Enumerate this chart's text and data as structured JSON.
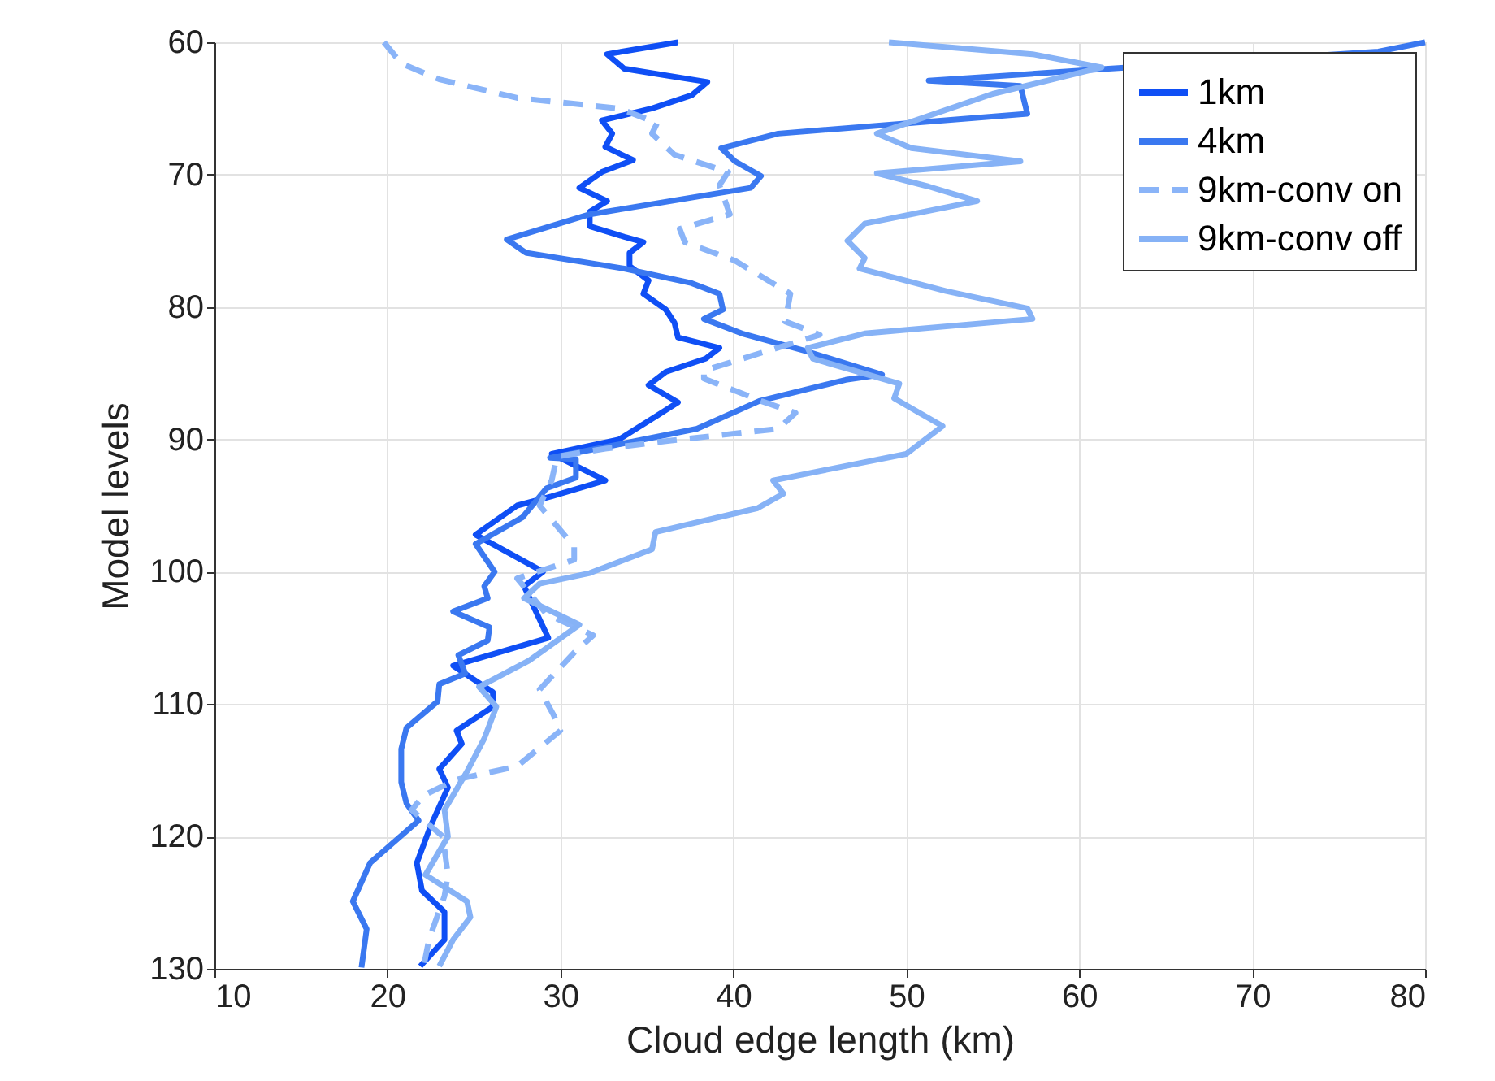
{
  "chart_data": {
    "type": "line",
    "xlabel": "Cloud edge length (km)",
    "ylabel": "Model levels",
    "xlim": [
      10,
      80
    ],
    "xticks": [
      10,
      20,
      30,
      40,
      50,
      60,
      70,
      80
    ],
    "ylim": [
      130,
      60
    ],
    "yticks": [
      60,
      70,
      80,
      90,
      100,
      110,
      120,
      130
    ],
    "grid": true,
    "legend": "top right",
    "marker": "none",
    "series": [
      {
        "name": "1km",
        "color": "#0f4ff5",
        "line_style": "solid",
        "x": [
          36.8,
          32.7,
          33.7,
          36.1,
          38.5,
          37.6,
          35.3,
          32.4,
          33,
          32.6,
          34.2,
          32.4,
          31.1,
          32.7,
          31.7,
          31.7,
          33.7,
          34.8,
          34,
          34,
          35.1,
          34.8,
          36.1,
          36.6,
          36.8,
          39.2,
          38.4,
          36.1,
          35.1,
          36.8,
          35.6,
          33.4,
          29.5,
          32.6,
          29.5,
          27.5,
          25.1,
          29,
          27.9,
          29.3,
          23.8,
          26.1,
          26.1,
          24,
          24.3,
          23,
          23.5,
          22.5,
          21.7,
          22,
          23.3,
          23.3,
          21.9
        ],
        "values": [
          60,
          60.9,
          62,
          62.5,
          63,
          64,
          65,
          65.9,
          66.9,
          67.9,
          68.9,
          69.8,
          71,
          72,
          72.8,
          73.9,
          74.7,
          75.1,
          75.9,
          76.9,
          78,
          79,
          80.2,
          81.2,
          82.3,
          83.1,
          83.9,
          84.9,
          85.9,
          87.2,
          88.2,
          90,
          91.1,
          93.1,
          94.3,
          95,
          97.2,
          100,
          101.1,
          105,
          107.1,
          109.1,
          110.2,
          112,
          113,
          114.9,
          116.3,
          119.2,
          122,
          124.1,
          125.7,
          127.8,
          129.8
        ]
      },
      {
        "name": "4km",
        "color": "#3a78f0",
        "line_style": "solid",
        "x": [
          80,
          77.3,
          61.7,
          51.3,
          56.6,
          57,
          42.6,
          39.3,
          40.1,
          41.6,
          41,
          31.7,
          26.9,
          28,
          33.7,
          37.6,
          39.2,
          39.4,
          38.3,
          40.5,
          44.1,
          48.6,
          46.5,
          41.5,
          37.9,
          32.9,
          29.4,
          30.9,
          30.9,
          29.2,
          27.8,
          25.1,
          26.2,
          25.6,
          25.8,
          23.8,
          25.9,
          25.8,
          24.1,
          24.5,
          23,
          22.9,
          21.1,
          20.8,
          20.8,
          21.1,
          21.8,
          19,
          18,
          18.8,
          18.5
        ],
        "values": [
          60,
          60.7,
          62,
          62.9,
          63.3,
          65.4,
          66.9,
          68,
          69,
          70.1,
          71,
          73,
          74.9,
          75.9,
          77.1,
          78.2,
          79,
          80.2,
          80.9,
          82,
          83.3,
          85.1,
          85.5,
          87.1,
          89.2,
          90.5,
          91.4,
          91.5,
          92.9,
          93.7,
          95.9,
          97.9,
          100,
          101.1,
          102,
          103,
          104.2,
          105.2,
          106.3,
          107.7,
          108.5,
          109.8,
          111.8,
          113.4,
          115.9,
          117.5,
          118.8,
          122,
          124.9,
          127,
          129.9
        ]
      },
      {
        "name": "9km-conv on",
        "color": "#8ab4f8",
        "line_style": "dashed",
        "x": [
          19.8,
          20.8,
          23,
          27.5,
          33.4,
          35.6,
          35.3,
          36.6,
          39.7,
          39.2,
          39.8,
          36.9,
          37.2,
          40.1,
          43.3,
          43,
          45,
          38.3,
          38.3,
          41.6,
          43.6,
          42.6,
          36.3,
          32.6,
          29.8,
          29.5,
          28.8,
          30.8,
          30.8,
          27.5,
          29.2,
          31.9,
          30.8,
          28.8,
          29.6,
          30,
          27.5,
          24,
          22.1,
          21.4,
          23.2,
          23.5,
          23.3,
          22.4,
          22.1
        ],
        "values": [
          60,
          61.6,
          62.8,
          64.2,
          65,
          66.1,
          66.9,
          68.5,
          69.8,
          70.8,
          73,
          74.1,
          75.1,
          76.5,
          79,
          81.1,
          82.1,
          84.8,
          85.4,
          87.1,
          88,
          89.2,
          90.1,
          90.7,
          91.3,
          93.1,
          95,
          98.1,
          99.1,
          100.5,
          103.2,
          104.8,
          106.1,
          108.9,
          110.8,
          112,
          114.7,
          115.7,
          116.9,
          118,
          120,
          122.9,
          124.5,
          127.8,
          129.8
        ]
      },
      {
        "name": "9km-conv off",
        "color": "#86b2f6",
        "line_style": "solid",
        "x": [
          49,
          57.3,
          61.3,
          55,
          48.3,
          50.3,
          56.6,
          48.3,
          51.3,
          54.1,
          47.6,
          46.6,
          47.6,
          47.3,
          52.3,
          57,
          57.3,
          47.6,
          44.3,
          44.6,
          49.6,
          49.3,
          52.1,
          50,
          42.3,
          42.9,
          41.4,
          35.5,
          35.3,
          31.7,
          28.8,
          27.9,
          31.1,
          28.2,
          25.3,
          26.3,
          25.6,
          24.6,
          23.3,
          23.5,
          22.2,
          24.6,
          24.8,
          23.8,
          23
        ],
        "values": [
          60,
          60.9,
          61.9,
          63.9,
          66.9,
          68,
          69,
          69.9,
          70.9,
          72,
          73.7,
          75,
          76.3,
          77.1,
          78.8,
          80.1,
          80.9,
          82,
          83.1,
          83.9,
          85.8,
          86.9,
          89,
          91.1,
          93.1,
          94.1,
          95.2,
          97,
          98.3,
          100.1,
          100.9,
          102,
          104,
          106.7,
          108.7,
          110.2,
          112.6,
          115.1,
          118,
          120,
          122.9,
          124.9,
          126.1,
          127.8,
          129.8
        ]
      }
    ]
  }
}
